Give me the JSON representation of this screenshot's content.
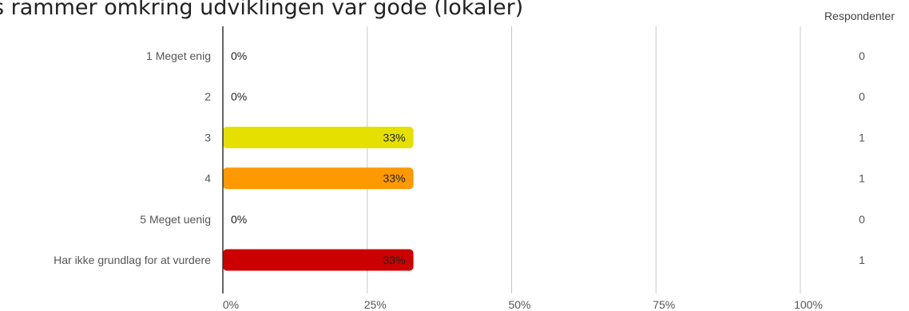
{
  "chart_data": {
    "type": "bar",
    "orientation": "horizontal",
    "title": "s rammer omkring udviklingen var gode (lokaler)",
    "count_header": "Respondenter",
    "categories": [
      "1 Meget enig",
      "2",
      "3",
      "4",
      "5 Meget uenig",
      "Har ikke grundlag for at vurdere"
    ],
    "values": [
      0,
      0,
      33,
      33,
      0,
      33
    ],
    "value_labels": [
      "0%",
      "0%",
      "33%",
      "33%",
      "0%",
      "33%"
    ],
    "counts": [
      "0",
      "0",
      "1",
      "1",
      "0",
      "1"
    ],
    "colors": [
      "#2e8b2e",
      "#8cc63f",
      "#e5e000",
      "#ff9900",
      "#e05000",
      "#cc0000"
    ],
    "xlim": [
      0,
      100
    ],
    "xticks": [
      0,
      25,
      50,
      75,
      100
    ],
    "xtick_labels": [
      "0%",
      "25%",
      "50%",
      "75%",
      "100%"
    ],
    "grid": true
  }
}
